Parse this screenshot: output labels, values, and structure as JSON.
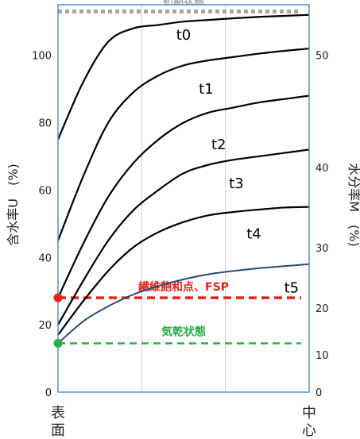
{
  "chart_data": {
    "type": "line",
    "left_axis": {
      "label": "含水率U　(%)",
      "ticks": [
        0,
        20,
        40,
        60,
        80,
        100
      ],
      "ylim": [
        0,
        115
      ]
    },
    "right_axis": {
      "label": "水分率M　(%)",
      "ticks": [
        0,
        10,
        20,
        30,
        40,
        50
      ]
    },
    "x_edge_labels": {
      "left": "表面",
      "right": "中心"
    },
    "grid": true,
    "reference_lines": [
      {
        "label": "初期状態",
        "value": 113,
        "color": "#a6a6a6"
      },
      {
        "label": "繊維飽和点、FSP",
        "value": 28,
        "color": "#e8221b"
      },
      {
        "label": "気乾状態",
        "value": 14.5,
        "color": "#27ae4a"
      }
    ],
    "series": [
      {
        "name": "t0",
        "color": "#000000",
        "x": [
          0,
          0.1,
          0.2,
          0.3,
          0.4,
          0.5,
          0.6,
          0.7,
          0.8,
          0.9,
          1.0
        ],
        "y": [
          75,
          92,
          104,
          108,
          109,
          110,
          110.5,
          111,
          111.4,
          111.7,
          112
        ]
      },
      {
        "name": "t1",
        "color": "#000000",
        "x": [
          0,
          0.1,
          0.2,
          0.3,
          0.4,
          0.5,
          0.6,
          0.7,
          0.8,
          0.9,
          1.0
        ],
        "y": [
          45,
          64,
          80,
          89,
          94,
          97,
          98.5,
          99.5,
          100.5,
          101.3,
          102
        ]
      },
      {
        "name": "t2",
        "color": "#000000",
        "x": [
          0,
          0.1,
          0.2,
          0.3,
          0.4,
          0.5,
          0.6,
          0.7,
          0.8,
          0.9,
          1.0
        ],
        "y": [
          28,
          44,
          58,
          68,
          75,
          80,
          83,
          84.5,
          86,
          87,
          88
        ]
      },
      {
        "name": "t3",
        "color": "#000000",
        "x": [
          0,
          0.1,
          0.2,
          0.3,
          0.4,
          0.5,
          0.6,
          0.7,
          0.8,
          0.9,
          1.0
        ],
        "y": [
          20,
          33,
          45,
          54,
          60,
          65,
          67.5,
          69,
          70,
          71,
          72
        ]
      },
      {
        "name": "t4",
        "color": "#000000",
        "x": [
          0,
          0.1,
          0.2,
          0.3,
          0.4,
          0.5,
          0.6,
          0.7,
          0.8,
          0.9,
          1.0
        ],
        "y": [
          17,
          27,
          36,
          43,
          47.5,
          50.5,
          52.5,
          53.5,
          54.2,
          54.8,
          55
        ]
      },
      {
        "name": "t5",
        "color": "#2c4a78",
        "x": [
          0,
          0.1,
          0.2,
          0.3,
          0.4,
          0.5,
          0.6,
          0.7,
          0.8,
          0.9,
          1.0
        ],
        "y": [
          14.5,
          21,
          25.5,
          29,
          31.5,
          33.5,
          35,
          36,
          36.8,
          37.4,
          38
        ]
      }
    ],
    "endpoint_markers": [
      {
        "value": 28,
        "color": "#e8221b"
      },
      {
        "value": 14.5,
        "color": "#27ae4a"
      }
    ]
  }
}
